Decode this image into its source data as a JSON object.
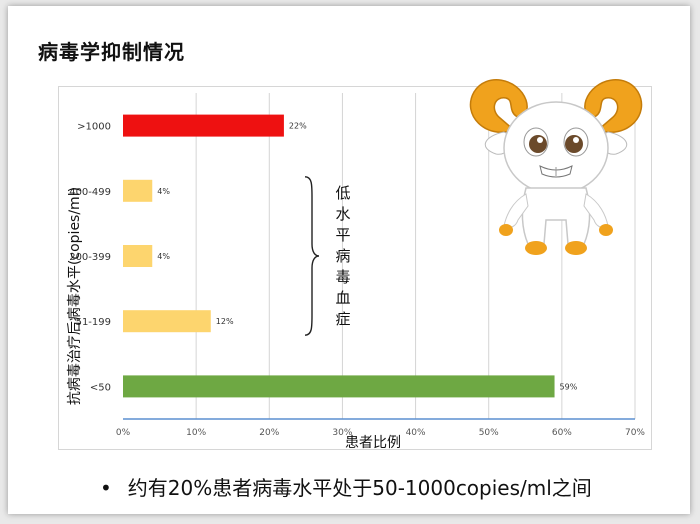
{
  "slide": {
    "title": "病毒学抑制情况",
    "bullet": "约有20%患者病毒水平处于50-1000copies/ml之间",
    "bracket_label": "低水平病毒血症"
  },
  "chart_data": {
    "type": "bar",
    "orientation": "horizontal",
    "title": "",
    "xlabel": "患者比例",
    "ylabel": "抗病毒治疗后病毒水平(copies/ml)",
    "categories": [
      ">1000",
      "400-499",
      "200-399",
      "51-199",
      "<50"
    ],
    "values": [
      22,
      4,
      4,
      12,
      59
    ],
    "data_labels": [
      "22%",
      "4%",
      "4%",
      "12%",
      "59%"
    ],
    "bar_colors": [
      "#ee1111",
      "#fdd56e",
      "#fdd56e",
      "#fdd56e",
      "#6ea843"
    ],
    "xlim": [
      0,
      70
    ],
    "xticks": [
      "0%",
      "10%",
      "20%",
      "30%",
      "40%",
      "50%",
      "60%",
      "70%"
    ],
    "grid": "vertical"
  },
  "colors": {
    "axis_line": "#5b8fd0",
    "grid": "#d4d4d4",
    "mascot_horn": "#f0a21d",
    "mascot_body": "#ffffff"
  },
  "icons": {
    "mascot": "goat-mascot-icon",
    "bullet": "bullet-dot-icon"
  }
}
